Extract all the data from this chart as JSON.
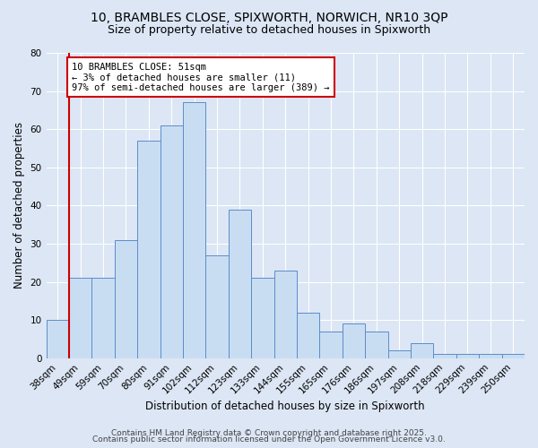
{
  "title_line1": "10, BRAMBLES CLOSE, SPIXWORTH, NORWICH, NR10 3QP",
  "title_line2": "Size of property relative to detached houses in Spixworth",
  "xlabel": "Distribution of detached houses by size in Spixworth",
  "ylabel": "Number of detached properties",
  "bar_labels": [
    "38sqm",
    "49sqm",
    "59sqm",
    "70sqm",
    "80sqm",
    "91sqm",
    "102sqm",
    "112sqm",
    "123sqm",
    "133sqm",
    "144sqm",
    "155sqm",
    "165sqm",
    "176sqm",
    "186sqm",
    "197sqm",
    "208sqm",
    "218sqm",
    "229sqm",
    "239sqm",
    "250sqm"
  ],
  "bar_values": [
    10,
    21,
    21,
    31,
    57,
    61,
    67,
    27,
    39,
    21,
    23,
    12,
    7,
    9,
    7,
    2,
    4,
    1,
    1,
    1,
    1
  ],
  "bar_color": "#c9ddf2",
  "bar_edge_color": "#5b8dc8",
  "background_color": "#dce6f5",
  "grid_color": "#ffffff",
  "annotation_text": "10 BRAMBLES CLOSE: 51sqm\n← 3% of detached houses are smaller (11)\n97% of semi-detached houses are larger (389) →",
  "annotation_box_color": "#ffffff",
  "annotation_box_edge_color": "#cc0000",
  "vline_x": 0.5,
  "ylim": [
    0,
    80
  ],
  "yticks": [
    0,
    10,
    20,
    30,
    40,
    50,
    60,
    70,
    80
  ],
  "footer_line1": "Contains HM Land Registry data © Crown copyright and database right 2025.",
  "footer_line2": "Contains public sector information licensed under the Open Government Licence v3.0.",
  "title_fontsize": 10,
  "subtitle_fontsize": 9,
  "axis_label_fontsize": 8.5,
  "tick_fontsize": 7.5,
  "annotation_fontsize": 7.5,
  "footer_fontsize": 6.5
}
